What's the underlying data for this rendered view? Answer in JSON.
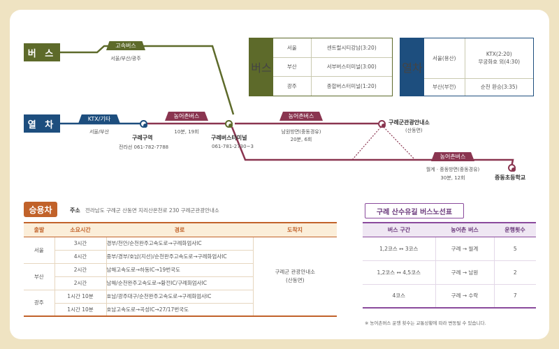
{
  "labels": {
    "bus": "버 스",
    "train": "열 차",
    "car": "승용차"
  },
  "colors": {
    "bus": "#5d6a2a",
    "train": "#1d4e7e",
    "rural": "#8a3550",
    "car": "#c1622a",
    "route_table": "#8a4a9c"
  },
  "map": {
    "express_bus": {
      "label": "고속버스",
      "sub": "서울/부산/광주"
    },
    "ktx": {
      "label": "KTX/기타",
      "sub": "서울/부산"
    },
    "rural1": {
      "label": "농어촌버스",
      "sub": "10분, 19회"
    },
    "rural2": {
      "label": "농어촌버스",
      "sub1": "남원방면(중동경유)",
      "sub2": "20분, 6회"
    },
    "rural3": {
      "label": "농어촌버스",
      "sub1": "월계 · 중동방면(중동경유)",
      "sub2": "30분, 12회"
    },
    "stations": {
      "gurye_station": {
        "name": "구례구역",
        "phone": "전라선 061-782-7788"
      },
      "terminal": {
        "name": "구례버스터미널",
        "phone": "061-781-2730~3"
      },
      "tourist_info": {
        "name": "구례군관광안내소",
        "sub": "(산동면)"
      },
      "school": {
        "name": "중동초등학교"
      }
    }
  },
  "bus_schedule": {
    "side": "버스",
    "rows": [
      {
        "city": "서울",
        "value": "센트럴시티강남(3:20)"
      },
      {
        "city": "부산",
        "value": "서부버스터미널(3:00)"
      },
      {
        "city": "광주",
        "value": "종합버스터미널(1:20)"
      }
    ]
  },
  "train_schedule": {
    "side": "열차",
    "rows": [
      {
        "city": "서울(용산)",
        "value1": "KTX(2:20)",
        "value2": "무궁화호 외(4:30)"
      },
      {
        "city": "부산(부전)",
        "value1": "순천 환승(3:35)",
        "value2": ""
      }
    ]
  },
  "car_section": {
    "address_label": "주소",
    "address": "전라남도 구례군 산동면 지리산온천로 230 구례군관광안내소",
    "headers": [
      "출발",
      "소요시간",
      "경로",
      "도착지"
    ],
    "destination": "구례군 관광안내소\n(산동면)",
    "rows": [
      {
        "origin": "서울",
        "time": "3시간",
        "route": "경부/천안/순천완주고속도로→구례화엄사IC"
      },
      {
        "origin": "",
        "time": "4시간",
        "route": "중부/경부/호남(지선)/순천완주고속도로→구례화엄사IC"
      },
      {
        "origin": "부산",
        "time": "2시간",
        "route": "남해고속도로→하동IC→19번국도"
      },
      {
        "origin": "",
        "time": "2시간",
        "route": "남해/순천완주고속도로→황전IC/구례화엄사IC"
      },
      {
        "origin": "광주",
        "time": "1시간 10분",
        "route": "호남/광주대구/순천완주고속도로→구례화엄사IC"
      },
      {
        "origin": "",
        "time": "1시간 10분",
        "route": "호남고속도로→곡성IC→27/17번국도"
      }
    ]
  },
  "route_table": {
    "title": "구례 산수유길 버스노선표",
    "headers": [
      "버스 구간",
      "농어촌 버스",
      "운행횟수"
    ],
    "rows": [
      {
        "section": "1,2코스 ↔ 3코스",
        "bus": "구례 → 월계",
        "count": "5"
      },
      {
        "section": "1,2코스 ↔ 4,5코스",
        "bus": "구례 → 남원",
        "count": "2"
      },
      {
        "section": "4코스",
        "bus": "구례 → 수락",
        "count": "7"
      }
    ],
    "note": "※ 농어촌버스 운행 횟수는 교통상황에 따라 변동될 수 있습니다."
  }
}
